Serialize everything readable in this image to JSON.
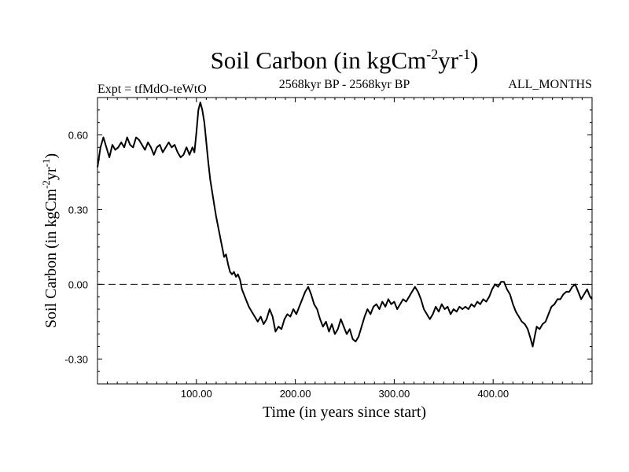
{
  "chart_data": {
    "type": "line",
    "title": {
      "prefix": "Soil Carbon (in kgCm",
      "sup1": "-2",
      "mid": "yr",
      "sup2": "-1",
      "suffix": ")"
    },
    "subtitle_left": "Expt = tfMdO-teWtO",
    "subtitle_center": "2568kyr BP - 2568kyr BP",
    "subtitle_right": "ALL_MONTHS",
    "xlabel": "Time (in years since start)",
    "ylabel": {
      "prefix": "Soil Carbon (in kgCm",
      "sup1": "-2",
      "mid": "yr",
      "sup2": "-1",
      "suffix": ")"
    },
    "xlim": [
      0,
      500
    ],
    "ylim": [
      -0.4,
      0.75
    ],
    "x_ticks": [
      {
        "value": 100,
        "label": "100.00"
      },
      {
        "value": 200,
        "label": "200.00"
      },
      {
        "value": 300,
        "label": "300.00"
      },
      {
        "value": 400,
        "label": "400.00"
      }
    ],
    "y_ticks": [
      {
        "value": 0.6,
        "label": "0.60"
      },
      {
        "value": 0.3,
        "label": "0.30"
      },
      {
        "value": 0.0,
        "label": "0.00"
      },
      {
        "value": -0.3,
        "label": "-0.30"
      }
    ],
    "reference_line": {
      "y": 0.0,
      "style": "dashed"
    },
    "series": [
      {
        "name": "Soil Carbon",
        "color": "#000000",
        "points": [
          [
            0,
            0.47
          ],
          [
            3,
            0.55
          ],
          [
            6,
            0.59
          ],
          [
            9,
            0.55
          ],
          [
            12,
            0.51
          ],
          [
            15,
            0.56
          ],
          [
            18,
            0.54
          ],
          [
            21,
            0.55
          ],
          [
            24,
            0.57
          ],
          [
            27,
            0.55
          ],
          [
            30,
            0.59
          ],
          [
            33,
            0.56
          ],
          [
            36,
            0.55
          ],
          [
            39,
            0.59
          ],
          [
            42,
            0.58
          ],
          [
            45,
            0.56
          ],
          [
            48,
            0.54
          ],
          [
            51,
            0.57
          ],
          [
            54,
            0.55
          ],
          [
            57,
            0.52
          ],
          [
            60,
            0.55
          ],
          [
            63,
            0.56
          ],
          [
            66,
            0.53
          ],
          [
            69,
            0.55
          ],
          [
            72,
            0.57
          ],
          [
            75,
            0.55
          ],
          [
            78,
            0.56
          ],
          [
            81,
            0.53
          ],
          [
            84,
            0.51
          ],
          [
            87,
            0.52
          ],
          [
            90,
            0.55
          ],
          [
            93,
            0.52
          ],
          [
            96,
            0.55
          ],
          [
            98,
            0.53
          ],
          [
            100,
            0.61
          ],
          [
            102,
            0.7
          ],
          [
            104,
            0.73
          ],
          [
            106,
            0.7
          ],
          [
            108,
            0.65
          ],
          [
            110,
            0.57
          ],
          [
            112,
            0.49
          ],
          [
            114,
            0.42
          ],
          [
            116,
            0.37
          ],
          [
            118,
            0.32
          ],
          [
            120,
            0.27
          ],
          [
            122,
            0.23
          ],
          [
            124,
            0.19
          ],
          [
            126,
            0.15
          ],
          [
            128,
            0.11
          ],
          [
            130,
            0.12
          ],
          [
            132,
            0.08
          ],
          [
            134,
            0.05
          ],
          [
            136,
            0.04
          ],
          [
            138,
            0.05
          ],
          [
            140,
            0.03
          ],
          [
            142,
            0.04
          ],
          [
            144,
            0.02
          ],
          [
            146,
            -0.02
          ],
          [
            148,
            -0.04
          ],
          [
            150,
            -0.06
          ],
          [
            153,
            -0.09
          ],
          [
            156,
            -0.11
          ],
          [
            159,
            -0.13
          ],
          [
            162,
            -0.15
          ],
          [
            165,
            -0.13
          ],
          [
            168,
            -0.16
          ],
          [
            171,
            -0.14
          ],
          [
            174,
            -0.1
          ],
          [
            177,
            -0.13
          ],
          [
            180,
            -0.19
          ],
          [
            183,
            -0.17
          ],
          [
            186,
            -0.18
          ],
          [
            189,
            -0.14
          ],
          [
            192,
            -0.12
          ],
          [
            195,
            -0.13
          ],
          [
            198,
            -0.1
          ],
          [
            201,
            -0.12
          ],
          [
            204,
            -0.09
          ],
          [
            207,
            -0.06
          ],
          [
            210,
            -0.03
          ],
          [
            213,
            -0.01
          ],
          [
            216,
            -0.04
          ],
          [
            219,
            -0.08
          ],
          [
            222,
            -0.1
          ],
          [
            225,
            -0.14
          ],
          [
            228,
            -0.17
          ],
          [
            231,
            -0.15
          ],
          [
            234,
            -0.19
          ],
          [
            237,
            -0.16
          ],
          [
            240,
            -0.2
          ],
          [
            243,
            -0.18
          ],
          [
            246,
            -0.14
          ],
          [
            249,
            -0.17
          ],
          [
            252,
            -0.2
          ],
          [
            255,
            -0.18
          ],
          [
            258,
            -0.22
          ],
          [
            261,
            -0.23
          ],
          [
            264,
            -0.21
          ],
          [
            267,
            -0.17
          ],
          [
            270,
            -0.13
          ],
          [
            273,
            -0.1
          ],
          [
            276,
            -0.12
          ],
          [
            279,
            -0.09
          ],
          [
            282,
            -0.08
          ],
          [
            285,
            -0.1
          ],
          [
            288,
            -0.07
          ],
          [
            291,
            -0.09
          ],
          [
            294,
            -0.06
          ],
          [
            297,
            -0.08
          ],
          [
            300,
            -0.07
          ],
          [
            303,
            -0.1
          ],
          [
            306,
            -0.08
          ],
          [
            309,
            -0.06
          ],
          [
            312,
            -0.07
          ],
          [
            315,
            -0.05
          ],
          [
            318,
            -0.03
          ],
          [
            321,
            -0.01
          ],
          [
            324,
            -0.03
          ],
          [
            327,
            -0.06
          ],
          [
            330,
            -0.1
          ],
          [
            333,
            -0.12
          ],
          [
            336,
            -0.14
          ],
          [
            339,
            -0.12
          ],
          [
            342,
            -0.09
          ],
          [
            345,
            -0.11
          ],
          [
            348,
            -0.08
          ],
          [
            351,
            -0.1
          ],
          [
            354,
            -0.09
          ],
          [
            357,
            -0.12
          ],
          [
            360,
            -0.1
          ],
          [
            363,
            -0.11
          ],
          [
            366,
            -0.09
          ],
          [
            369,
            -0.1
          ],
          [
            372,
            -0.09
          ],
          [
            375,
            -0.1
          ],
          [
            378,
            -0.08
          ],
          [
            381,
            -0.09
          ],
          [
            384,
            -0.07
          ],
          [
            387,
            -0.08
          ],
          [
            390,
            -0.06
          ],
          [
            393,
            -0.07
          ],
          [
            396,
            -0.05
          ],
          [
            399,
            -0.02
          ],
          [
            402,
            0.0
          ],
          [
            405,
            -0.01
          ],
          [
            408,
            0.01
          ],
          [
            411,
            0.01
          ],
          [
            414,
            -0.02
          ],
          [
            417,
            -0.04
          ],
          [
            420,
            -0.08
          ],
          [
            423,
            -0.11
          ],
          [
            426,
            -0.13
          ],
          [
            429,
            -0.15
          ],
          [
            432,
            -0.16
          ],
          [
            435,
            -0.18
          ],
          [
            438,
            -0.22
          ],
          [
            440,
            -0.25
          ],
          [
            442,
            -0.21
          ],
          [
            444,
            -0.17
          ],
          [
            447,
            -0.18
          ],
          [
            450,
            -0.16
          ],
          [
            453,
            -0.15
          ],
          [
            456,
            -0.12
          ],
          [
            459,
            -0.09
          ],
          [
            462,
            -0.08
          ],
          [
            465,
            -0.06
          ],
          [
            468,
            -0.06
          ],
          [
            471,
            -0.04
          ],
          [
            474,
            -0.03
          ],
          [
            477,
            -0.03
          ],
          [
            480,
            -0.01
          ],
          [
            483,
            0.0
          ],
          [
            486,
            -0.03
          ],
          [
            489,
            -0.06
          ],
          [
            492,
            -0.04
          ],
          [
            495,
            -0.02
          ],
          [
            498,
            -0.05
          ],
          [
            500,
            -0.06
          ]
        ]
      }
    ]
  }
}
